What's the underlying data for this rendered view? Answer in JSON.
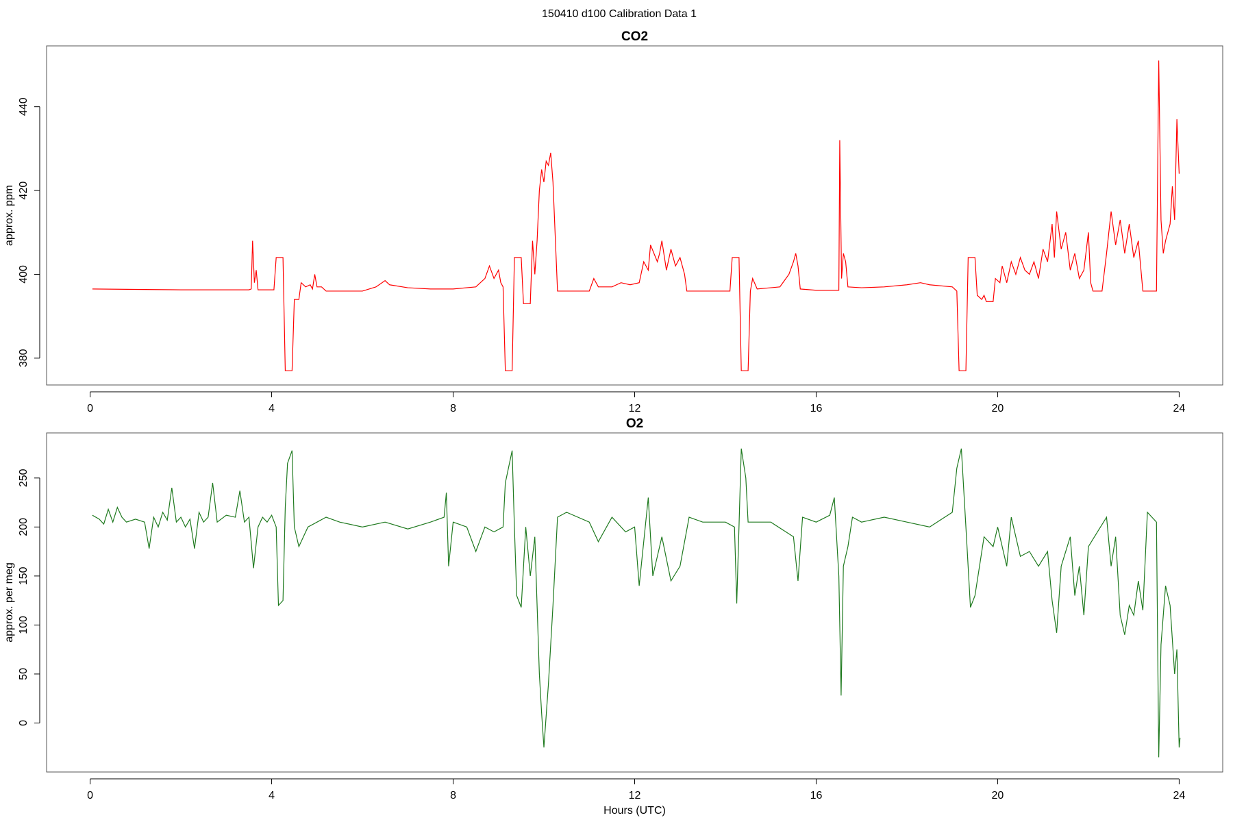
{
  "title": "150410   d100   Calibration Data 1",
  "chart_data": [
    {
      "type": "line",
      "title": "CO2",
      "ylabel": "approx. ppm",
      "color": "#ff0000",
      "xlim": [
        -0.96,
        24.96
      ],
      "ylim": [
        373.6,
        454.5
      ],
      "xticks": [
        0,
        4,
        8,
        12,
        16,
        20,
        24
      ],
      "yticks": [
        380,
        400,
        420,
        440
      ],
      "x": [
        0.05,
        1,
        2,
        3,
        3.5,
        3.55,
        3.58,
        3.62,
        3.66,
        3.7,
        4.05,
        4.1,
        4.25,
        4.3,
        4.45,
        4.5,
        4.6,
        4.65,
        4.75,
        4.85,
        4.9,
        4.95,
        5.0,
        5.1,
        5.2,
        5.6,
        6,
        6.3,
        6.5,
        6.6,
        7,
        7.5,
        8,
        8.5,
        8.7,
        8.8,
        8.9,
        9.0,
        9.05,
        9.1,
        9.15,
        9.3,
        9.35,
        9.5,
        9.55,
        9.7,
        9.75,
        9.8,
        9.85,
        9.9,
        9.95,
        10.0,
        10.05,
        10.1,
        10.15,
        10.2,
        10.3,
        10.5,
        11,
        11.1,
        11.2,
        11.5,
        11.7,
        11.9,
        12.1,
        12.2,
        12.3,
        12.35,
        12.5,
        12.55,
        12.6,
        12.7,
        12.8,
        12.9,
        13.0,
        13.1,
        13.15,
        13.5,
        14,
        14.1,
        14.15,
        14.3,
        14.35,
        14.5,
        14.55,
        14.6,
        14.7,
        15,
        15.2,
        15.4,
        15.5,
        15.55,
        15.6,
        15.65,
        16,
        16.5,
        16.52,
        16.56,
        16.6,
        16.65,
        16.7,
        17,
        17.5,
        18,
        18.3,
        18.5,
        19,
        19.1,
        19.15,
        19.3,
        19.35,
        19.5,
        19.55,
        19.65,
        19.7,
        19.75,
        19.9,
        19.95,
        20.05,
        20.1,
        20.2,
        20.3,
        20.4,
        20.5,
        20.6,
        20.7,
        20.8,
        20.9,
        21,
        21.1,
        21.2,
        21.25,
        21.3,
        21.4,
        21.5,
        21.6,
        21.7,
        21.8,
        21.9,
        22.0,
        22.05,
        22.1,
        22.3,
        22.4,
        22.5,
        22.6,
        22.7,
        22.8,
        22.9,
        23.0,
        23.1,
        23.15,
        23.2,
        23.5,
        23.55,
        23.6,
        23.65,
        23.7,
        23.8,
        23.85,
        23.9,
        23.95,
        24.0
      ],
      "values": [
        396.5,
        396.4,
        396.3,
        396.3,
        396.3,
        396.5,
        408,
        398,
        401,
        396.3,
        396.3,
        404,
        404,
        377,
        377,
        394,
        394,
        398,
        397,
        397.5,
        396.5,
        400,
        397,
        397,
        396,
        396,
        396,
        397,
        398.5,
        397.5,
        396.8,
        396.5,
        396.5,
        397,
        399,
        402,
        399,
        401,
        398,
        397,
        377,
        377,
        404,
        404,
        393,
        393,
        408,
        400,
        408,
        420,
        425,
        422,
        427,
        426,
        429,
        422,
        396,
        396,
        396,
        399,
        397,
        397,
        398,
        397.5,
        398,
        403,
        401,
        407,
        403,
        405,
        408,
        401,
        406,
        402,
        404,
        400,
        396,
        396,
        396,
        396,
        404,
        404,
        377,
        377,
        396,
        399,
        396.5,
        396.8,
        397,
        400,
        403,
        405,
        402,
        396.5,
        396.2,
        396.2,
        432,
        399,
        405,
        403,
        397,
        396.8,
        397,
        397.5,
        398,
        397.5,
        397,
        396,
        377,
        377,
        404,
        404,
        395,
        394,
        395,
        393.5,
        393.5,
        399,
        398,
        402,
        398,
        403,
        400,
        404,
        401,
        400,
        403,
        399,
        406,
        403,
        412,
        404,
        415,
        406,
        410,
        401,
        405,
        399,
        401,
        410,
        398,
        396,
        396,
        405,
        415,
        407,
        413,
        405,
        412,
        404,
        408,
        402,
        396,
        396,
        451,
        413,
        405,
        408,
        412,
        421,
        413,
        437,
        424
      ]
    },
    {
      "type": "line",
      "title": "O2",
      "ylabel": "approx. per meg",
      "xlabel": "Hours (UTC)",
      "color": "#1f7a1f",
      "xlim": [
        -0.96,
        24.96
      ],
      "ylim": [
        -50,
        296
      ],
      "xticks": [
        0,
        4,
        8,
        12,
        16,
        20,
        24
      ],
      "yticks": [
        0,
        50,
        100,
        150,
        200,
        250
      ],
      "x": [
        0.05,
        0.2,
        0.3,
        0.4,
        0.5,
        0.6,
        0.7,
        0.8,
        1.0,
        1.2,
        1.3,
        1.4,
        1.5,
        1.6,
        1.7,
        1.8,
        1.9,
        2.0,
        2.1,
        2.2,
        2.3,
        2.4,
        2.5,
        2.6,
        2.7,
        2.8,
        3.0,
        3.2,
        3.3,
        3.4,
        3.5,
        3.6,
        3.7,
        3.8,
        3.9,
        4.0,
        4.1,
        4.15,
        4.25,
        4.3,
        4.35,
        4.45,
        4.5,
        4.6,
        4.7,
        4.8,
        5.0,
        5.2,
        5.5,
        6.0,
        6.5,
        7.0,
        7.5,
        7.8,
        7.85,
        7.9,
        8.0,
        8.3,
        8.5,
        8.7,
        8.9,
        9.1,
        9.15,
        9.3,
        9.35,
        9.4,
        9.5,
        9.6,
        9.7,
        9.8,
        9.9,
        9.95,
        10.0,
        10.1,
        10.2,
        10.3,
        10.5,
        11,
        11.2,
        11.5,
        11.8,
        12,
        12.1,
        12.3,
        12.4,
        12.6,
        12.8,
        13.0,
        13.2,
        13.5,
        14.0,
        14.2,
        14.25,
        14.35,
        14.45,
        14.5,
        15.0,
        15.5,
        15.6,
        15.7,
        16.0,
        16.3,
        16.4,
        16.5,
        16.55,
        16.6,
        16.7,
        16.8,
        17.0,
        17.5,
        18,
        18.5,
        19.0,
        19.1,
        19.2,
        19.3,
        19.4,
        19.5,
        19.7,
        19.9,
        20.0,
        20.2,
        20.3,
        20.5,
        20.7,
        20.9,
        21.1,
        21.2,
        21.3,
        21.4,
        21.5,
        21.6,
        21.7,
        21.8,
        21.9,
        22.0,
        22.2,
        22.4,
        22.5,
        22.6,
        22.7,
        22.8,
        22.9,
        23.0,
        23.1,
        23.2,
        23.3,
        23.5,
        23.55,
        23.6,
        23.7,
        23.8,
        23.9,
        23.95,
        24.0,
        24.02
      ],
      "values": [
        212,
        208,
        203,
        218,
        205,
        220,
        210,
        205,
        208,
        205,
        178,
        210,
        200,
        215,
        207,
        240,
        205,
        210,
        200,
        208,
        178,
        215,
        205,
        210,
        245,
        205,
        212,
        210,
        237,
        205,
        210,
        158,
        200,
        210,
        205,
        212,
        200,
        120,
        125,
        220,
        265,
        278,
        200,
        180,
        190,
        200,
        205,
        210,
        205,
        200,
        205,
        198,
        205,
        210,
        235,
        160,
        205,
        200,
        175,
        200,
        195,
        200,
        245,
        278,
        200,
        130,
        118,
        200,
        150,
        190,
        50,
        10,
        -25,
        40,
        120,
        210,
        215,
        205,
        185,
        210,
        195,
        200,
        140,
        230,
        150,
        190,
        145,
        160,
        210,
        205,
        205,
        200,
        122,
        280,
        250,
        205,
        205,
        190,
        145,
        210,
        205,
        212,
        230,
        150,
        28,
        160,
        180,
        210,
        205,
        210,
        205,
        200,
        215,
        260,
        280,
        200,
        118,
        130,
        190,
        180,
        200,
        160,
        210,
        170,
        175,
        160,
        175,
        125,
        92,
        160,
        175,
        190,
        130,
        160,
        110,
        180,
        195,
        210,
        160,
        190,
        110,
        90,
        120,
        110,
        145,
        115,
        215,
        205,
        -35,
        80,
        140,
        120,
        50,
        75,
        -25,
        -15
      ]
    }
  ]
}
